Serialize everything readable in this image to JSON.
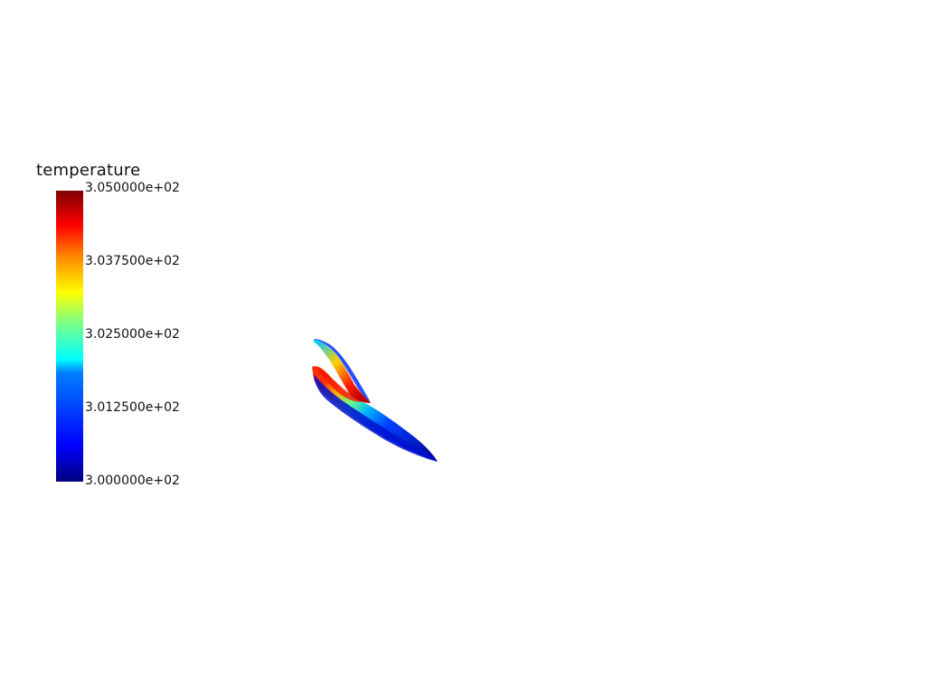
{
  "scalar_bar": {
    "title": "temperature",
    "colormap": "jet",
    "colors": [
      "#000080",
      "#0000ff",
      "#00ffff",
      "#ffff00",
      "#ff0000",
      "#800000"
    ],
    "labels": [
      "3.050000e+02",
      "3.037500e+02",
      "3.025000e+02",
      "3.012500e+02",
      "3.000000e+02"
    ]
  },
  "background": "#ffffff"
}
